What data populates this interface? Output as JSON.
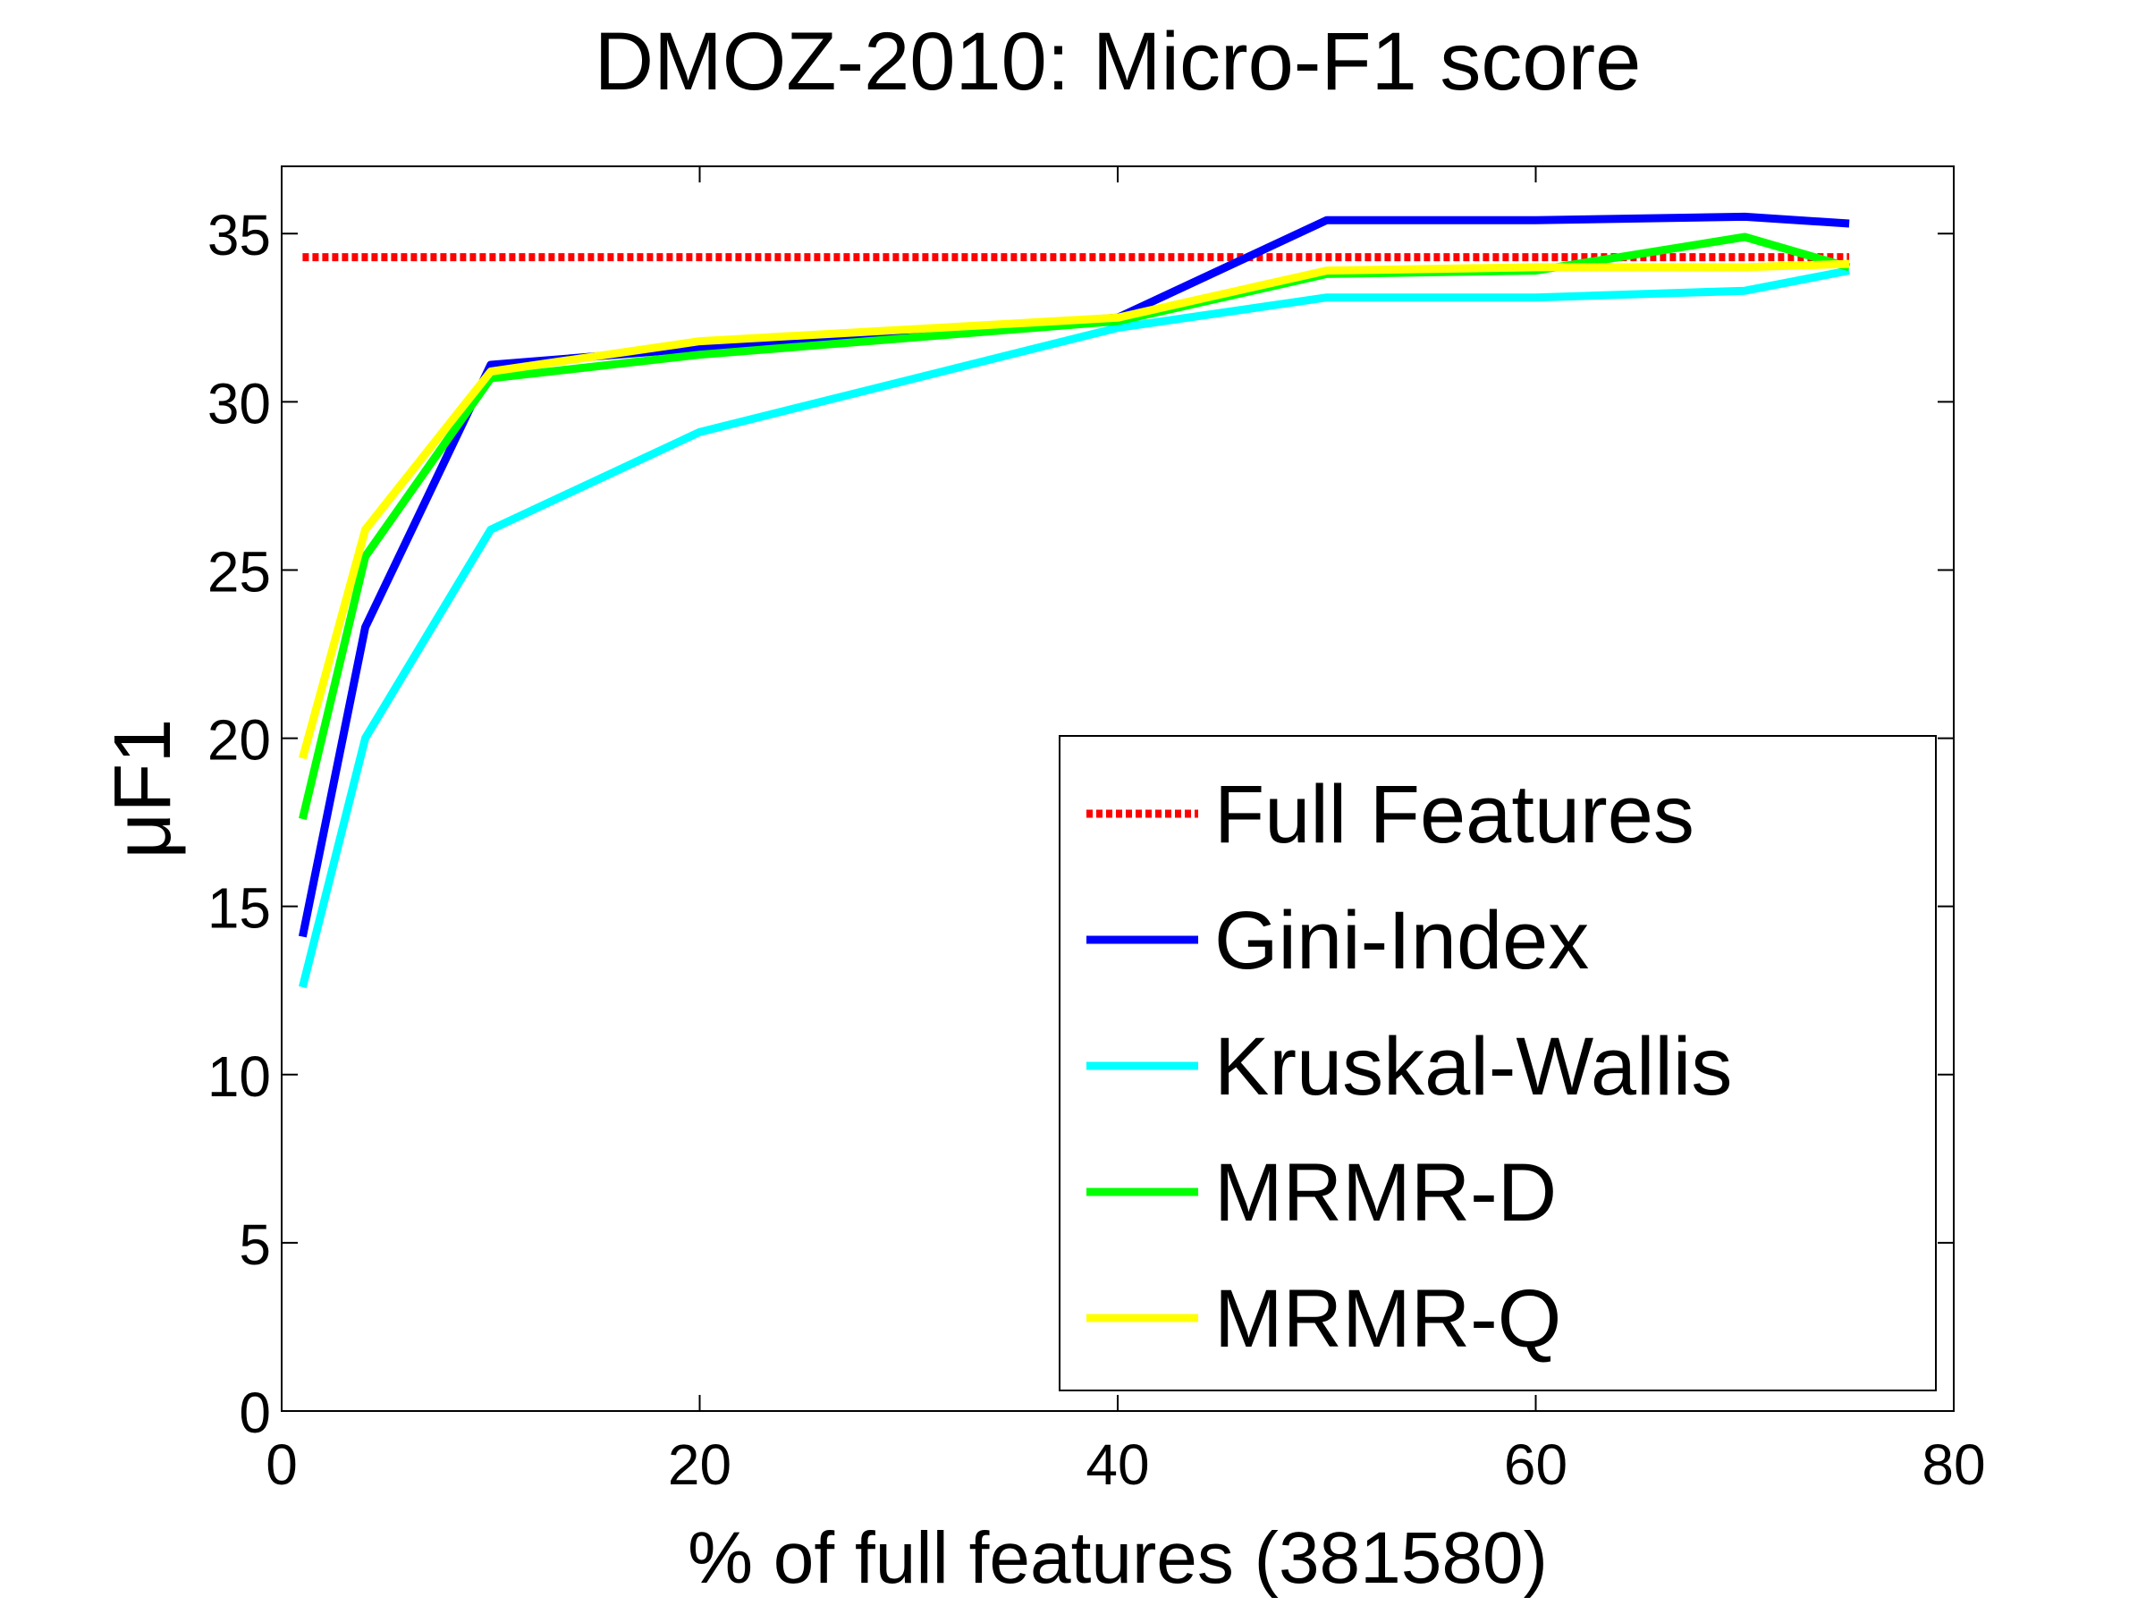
{
  "chart_data": {
    "type": "line",
    "title": "DMOZ-2010: Micro-F1 score",
    "xlabel": "% of full features (381580)",
    "ylabel": "μF1",
    "xlim": [
      0,
      80
    ],
    "ylim": [
      0,
      37
    ],
    "xticks": [
      0,
      20,
      40,
      60,
      80
    ],
    "yticks": [
      0,
      5,
      10,
      15,
      20,
      25,
      30,
      35
    ],
    "grid": false,
    "legend_position": "bottom-right",
    "series": [
      {
        "name": "Full Features",
        "color": "#ff0000",
        "style": "dotted",
        "x": [
          1,
          75
        ],
        "y": [
          34.3,
          34.3
        ]
      },
      {
        "name": "Gini-Index",
        "color": "#0000ff",
        "style": "solid",
        "x": [
          1,
          4,
          10,
          20,
          40,
          50,
          60,
          70,
          75
        ],
        "y": [
          14.1,
          23.3,
          31.1,
          31.6,
          32.5,
          35.4,
          35.4,
          35.5,
          35.3
        ]
      },
      {
        "name": "Kruskal-Wallis",
        "color": "#00ffff",
        "style": "solid",
        "x": [
          1,
          4,
          10,
          20,
          40,
          50,
          60,
          70,
          75
        ],
        "y": [
          12.6,
          20.0,
          26.2,
          29.1,
          32.2,
          33.1,
          33.1,
          33.3,
          33.9
        ]
      },
      {
        "name": "MRMR-D",
        "color": "#00ff00",
        "style": "solid",
        "x": [
          1,
          4,
          10,
          20,
          40,
          50,
          60,
          70,
          75
        ],
        "y": [
          17.6,
          25.4,
          30.7,
          31.4,
          32.4,
          33.8,
          33.9,
          34.9,
          34.0
        ]
      },
      {
        "name": "MRMR-Q",
        "color": "#ffff00",
        "style": "solid",
        "x": [
          1,
          4,
          10,
          20,
          40,
          50,
          60,
          70,
          75
        ],
        "y": [
          19.4,
          26.2,
          30.9,
          31.8,
          32.5,
          33.9,
          34.0,
          34.0,
          34.1
        ]
      }
    ]
  }
}
